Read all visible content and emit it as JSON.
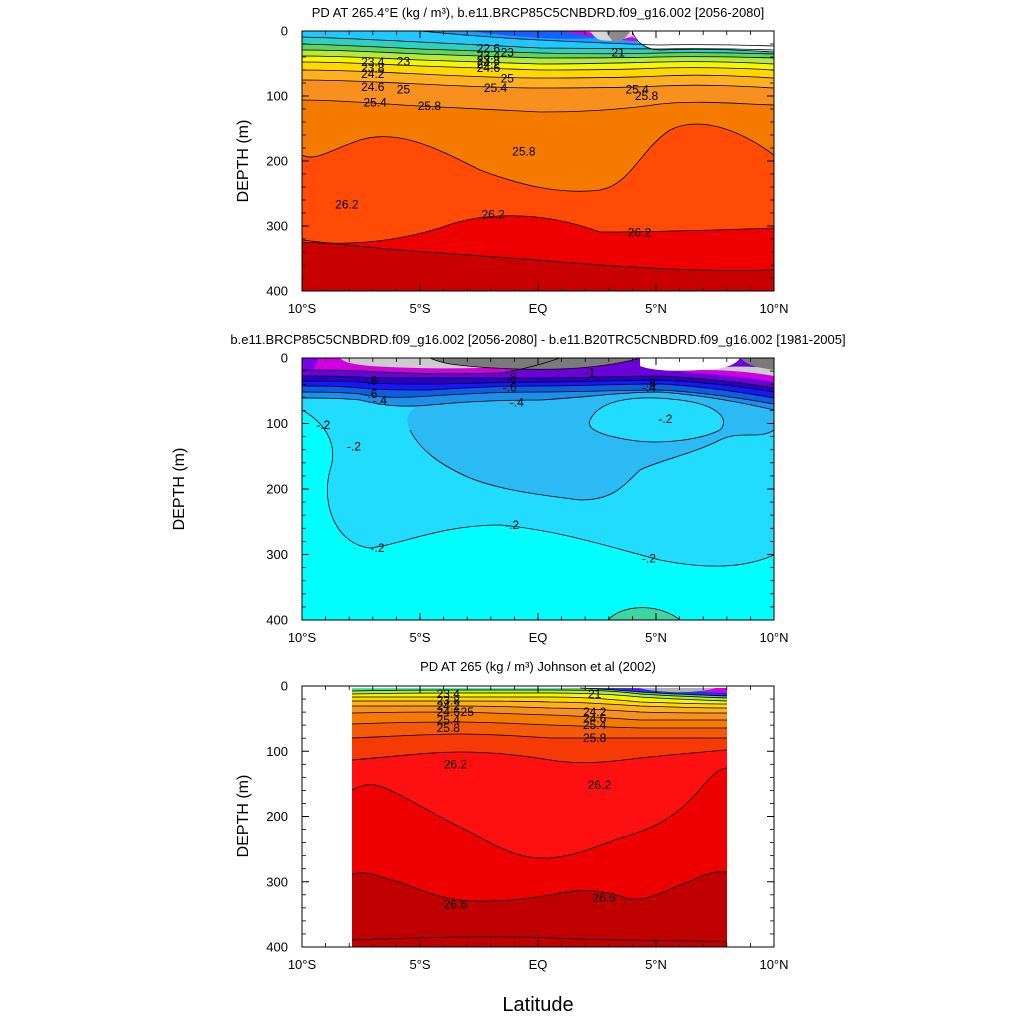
{
  "xlabel_common": "Latitude",
  "colors": {
    "density_ramp": [
      "#2ff0f0",
      "#1fd8ff",
      "#19b4ff",
      "#1a8cff",
      "#1760ff",
      "#1b2fff",
      "#2a00d6",
      "#7a00e8",
      "#d400e0",
      "#ff40ff",
      "#d6d6d6",
      "#9a9a9a",
      "#606060"
    ],
    "density_warm": [
      "#5fd45f",
      "#b8e83a",
      "#f6f600",
      "#ffd800",
      "#ffb020",
      "#f89020",
      "#f57b00",
      "#f45a0a",
      "#f53a05",
      "#f20000",
      "#d41010",
      "#b00000"
    ],
    "anomaly_ramp": [
      "#00ffff",
      "#22dcff",
      "#2cbaf5",
      "#1d8fe8",
      "#0b5fe3",
      "#1616ff",
      "#2a00c8",
      "#6b00d8",
      "#d000e0",
      "#cccccc",
      "#7a7a7a",
      "#3ed6a0"
    ],
    "contour_line": "#000000"
  },
  "chart_data": [
    {
      "type": "contour",
      "title": "PD AT 265.4°E (kg / m³), b.e11.BRCP85C5CNBDRD.f09_g16.002 [2056-2080]",
      "xlabel": "",
      "ylabel": "DEPTH (m)",
      "xlim": [
        -10,
        10
      ],
      "ylim": [
        400,
        0
      ],
      "x_ticks": [
        -10,
        -5,
        0,
        5,
        10
      ],
      "x_ticklabels": [
        "10°S",
        "5°S",
        "EQ",
        "5°N",
        "10°N"
      ],
      "y_ticks": [
        0,
        100,
        200,
        300,
        400
      ],
      "y_ticklabels": [
        "0",
        "100",
        "200",
        "300",
        "400"
      ],
      "contour_labels": [
        {
          "lat": -7.0,
          "depth": 48,
          "text": "23.4"
        },
        {
          "lat": -7.0,
          "depth": 57,
          "text": "23.8"
        },
        {
          "lat": -7.0,
          "depth": 66,
          "text": "24.2"
        },
        {
          "lat": -7.0,
          "depth": 86,
          "text": "24.6"
        },
        {
          "lat": -5.7,
          "depth": 47,
          "text": "23"
        },
        {
          "lat": -6.9,
          "depth": 110,
          "text": "25.4"
        },
        {
          "lat": -5.7,
          "depth": 90,
          "text": "25"
        },
        {
          "lat": -4.6,
          "depth": 115,
          "text": "25.8"
        },
        {
          "lat": -2.1,
          "depth": 27,
          "text": "22.6"
        },
        {
          "lat": -1.3,
          "depth": 33,
          "text": "23"
        },
        {
          "lat": -2.1,
          "depth": 38,
          "text": "23.4"
        },
        {
          "lat": -2.1,
          "depth": 45,
          "text": "23.8"
        },
        {
          "lat": -2.1,
          "depth": 51,
          "text": "24.2"
        },
        {
          "lat": -2.1,
          "depth": 57,
          "text": "24.6"
        },
        {
          "lat": -1.3,
          "depth": 73,
          "text": "25"
        },
        {
          "lat": -1.8,
          "depth": 88,
          "text": "25.4"
        },
        {
          "lat": -0.6,
          "depth": 185,
          "text": "25.8"
        },
        {
          "lat": 3.4,
          "depth": 33,
          "text": "21"
        },
        {
          "lat": 4.2,
          "depth": 90,
          "text": "25.4"
        },
        {
          "lat": 4.6,
          "depth": 100,
          "text": "25.8"
        },
        {
          "lat": -8.1,
          "depth": 267,
          "text": "26.2"
        },
        {
          "lat": -1.9,
          "depth": 282,
          "text": "26.2"
        },
        {
          "lat": 4.3,
          "depth": 310,
          "text": "26.2"
        }
      ]
    },
    {
      "type": "contour",
      "title": "b.e11.BRCP85C5CNBDRD.f09_g16.002 [2056-2080] - b.e11.B20TRC5CNBDRD.f09_g16.002 [1981-2005]",
      "xlabel": "",
      "ylabel": "DEPTH (m)",
      "xlim": [
        -10,
        10
      ],
      "ylim": [
        400,
        0
      ],
      "x_ticks": [
        -10,
        -5,
        0,
        5,
        10
      ],
      "x_ticklabels": [
        "10°S",
        "5°S",
        "EQ",
        "5°N",
        "10°N"
      ],
      "y_ticks": [
        0,
        100,
        200,
        300,
        400
      ],
      "y_ticklabels": [
        "0",
        "100",
        "200",
        "300",
        "400"
      ],
      "contour_labels": [
        {
          "lat": -7.1,
          "depth": 34,
          "text": "-.8"
        },
        {
          "lat": -7.1,
          "depth": 55,
          "text": "-.6"
        },
        {
          "lat": -6.7,
          "depth": 65,
          "text": "-.4"
        },
        {
          "lat": -9.1,
          "depth": 102,
          "text": "-.2"
        },
        {
          "lat": -7.8,
          "depth": 135,
          "text": "-.2"
        },
        {
          "lat": -1.2,
          "depth": 30,
          "text": "-.8"
        },
        {
          "lat": -1.2,
          "depth": 45,
          "text": "-.6"
        },
        {
          "lat": -0.9,
          "depth": 68,
          "text": "-.4"
        },
        {
          "lat": 2.2,
          "depth": 22,
          "text": "-1"
        },
        {
          "lat": 4.7,
          "depth": 38,
          "text": "-.8"
        },
        {
          "lat": 4.7,
          "depth": 45,
          "text": "-.4"
        },
        {
          "lat": 5.4,
          "depth": 93,
          "text": "-.2"
        },
        {
          "lat": -1.1,
          "depth": 255,
          "text": "-.2"
        },
        {
          "lat": -6.8,
          "depth": 290,
          "text": "-.2"
        },
        {
          "lat": 4.7,
          "depth": 306,
          "text": "-.2"
        }
      ]
    },
    {
      "type": "contour",
      "title": "PD AT 265 (kg / m³) Johnson et al (2002)",
      "xlabel": "Latitude",
      "ylabel": "DEPTH (m)",
      "xlim": [
        -10,
        10
      ],
      "ylim": [
        400,
        0
      ],
      "data_lat_range": [
        -8,
        8
      ],
      "x_ticks": [
        -10,
        -5,
        0,
        5,
        10
      ],
      "x_ticklabels": [
        "10°S",
        "5°S",
        "EQ",
        "5°N",
        "10°N"
      ],
      "y_ticks": [
        0,
        100,
        200,
        300,
        400
      ],
      "y_ticklabels": [
        "0",
        "100",
        "200",
        "300",
        "400"
      ],
      "contour_labels": [
        {
          "lat": -3.8,
          "depth": 12,
          "text": "23.4"
        },
        {
          "lat": -3.8,
          "depth": 22,
          "text": "23.8"
        },
        {
          "lat": -3.8,
          "depth": 31,
          "text": "24.2"
        },
        {
          "lat": -3.8,
          "depth": 40,
          "text": "24.6"
        },
        {
          "lat": -3.0,
          "depth": 40,
          "text": "25"
        },
        {
          "lat": -3.8,
          "depth": 52,
          "text": "25.4"
        },
        {
          "lat": -3.8,
          "depth": 64,
          "text": "25.8"
        },
        {
          "lat": -3.5,
          "depth": 120,
          "text": "26.2"
        },
        {
          "lat": 2.4,
          "depth": 12,
          "text": "21"
        },
        {
          "lat": 2.4,
          "depth": 40,
          "text": "24.2"
        },
        {
          "lat": 2.4,
          "depth": 50,
          "text": "24.6"
        },
        {
          "lat": 2.4,
          "depth": 60,
          "text": "25.4"
        },
        {
          "lat": 2.4,
          "depth": 80,
          "text": "25.8"
        },
        {
          "lat": 2.6,
          "depth": 152,
          "text": "26.2"
        },
        {
          "lat": -3.5,
          "depth": 335,
          "text": "26.6"
        },
        {
          "lat": 2.8,
          "depth": 325,
          "text": "26.6"
        }
      ]
    }
  ]
}
